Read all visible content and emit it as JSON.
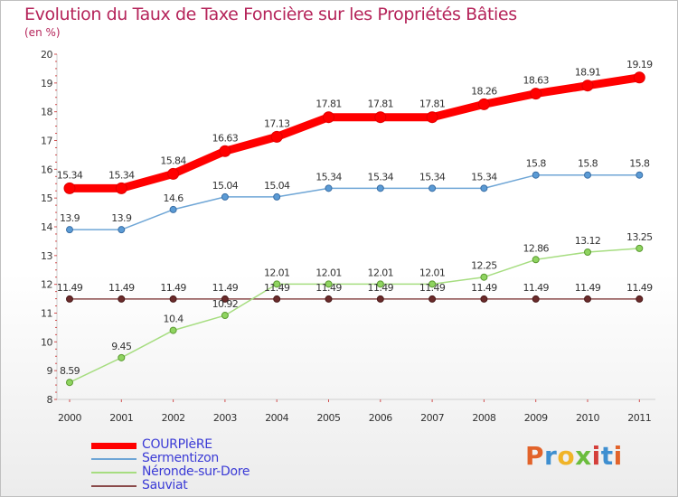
{
  "header": {
    "title": "Evolution du Taux de Taxe Foncière sur les Propriétés Bâties",
    "unit": "(en %)"
  },
  "logo": {
    "text": "Proxiti",
    "colors": [
      "#e2632a",
      "#3f8fd0",
      "#f0b428",
      "#6bbd3d",
      "#d43f3a",
      "#3f8fd0",
      "#e2632a"
    ]
  },
  "chart_data": {
    "type": "line",
    "title": "Evolution du Taux de Taxe Foncière sur les Propriétés Bâties",
    "ylabel": "(en %)",
    "xlabel": "",
    "categories": [
      "2000",
      "2001",
      "2002",
      "2003",
      "2004",
      "2005",
      "2006",
      "2007",
      "2008",
      "2009",
      "2010",
      "2011"
    ],
    "ylim": [
      8,
      20
    ],
    "yticks": [
      "8",
      "9",
      "10",
      "11",
      "12",
      "13",
      "14",
      "15",
      "16",
      "17",
      "18",
      "19",
      "20"
    ],
    "grid": false,
    "legend_position": "bottom-left",
    "series": [
      {
        "name": "COURPIèRE",
        "color": "#ff0000",
        "values": [
          15.34,
          15.34,
          15.84,
          16.63,
          17.13,
          17.81,
          17.81,
          17.81,
          18.26,
          18.63,
          18.91,
          19.19
        ],
        "labels": [
          "15.34",
          "15.34",
          "15.84",
          "16.63",
          "17.13",
          "17.81",
          "17.81",
          "17.81",
          "18.26",
          "18.63",
          "18.91",
          "19.19"
        ]
      },
      {
        "name": "Sermentizon",
        "color": "#5b9bd5",
        "values": [
          13.9,
          13.9,
          14.6,
          15.04,
          15.04,
          15.34,
          15.34,
          15.34,
          15.34,
          15.8,
          15.8,
          15.8
        ],
        "labels": [
          "13.9",
          "13.9",
          "14.6",
          "15.04",
          "15.04",
          "15.34",
          "15.34",
          "15.34",
          "15.34",
          "15.8",
          "15.8",
          "15.8"
        ]
      },
      {
        "name": "Néronde-sur-Dore",
        "color": "#8fd460",
        "values": [
          8.59,
          9.45,
          10.4,
          10.92,
          12.01,
          12.01,
          12.01,
          12.01,
          12.25,
          12.86,
          13.12,
          13.25
        ],
        "labels": [
          "8.59",
          "9.45",
          "10.4",
          "10.92",
          "12.01",
          "12.01",
          "12.01",
          "12.01",
          "12.25",
          "12.86",
          "13.12",
          "13.25"
        ]
      },
      {
        "name": "Sauviat",
        "color": "#8a4a4a",
        "values": [
          11.49,
          11.49,
          11.49,
          11.49,
          11.49,
          11.49,
          11.49,
          11.49,
          11.49,
          11.49,
          11.49,
          11.49
        ],
        "labels": [
          "11.49",
          "11.49",
          "11.49",
          "11.49",
          "11.49",
          "11.49",
          "11.49",
          "11.49",
          "11.49",
          "11.49",
          "11.49",
          "11.49"
        ]
      }
    ]
  }
}
